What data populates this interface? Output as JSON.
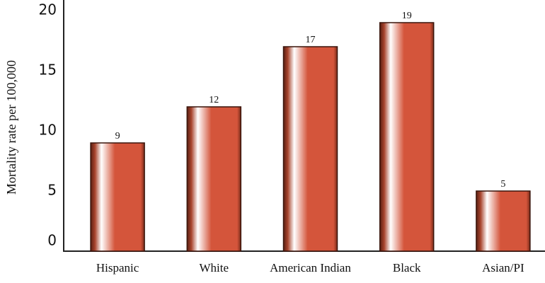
{
  "chart_data": {
    "type": "bar",
    "y_label": "Mortality rate per 100,000",
    "categories": [
      "Hispanic",
      "White",
      "American Indian",
      "Black",
      "Asian/PI"
    ],
    "values": [
      9,
      12,
      17,
      19,
      5
    ],
    "color": "#d4553b",
    "ylim": [
      0,
      20
    ],
    "yticks": [
      0,
      5,
      10,
      15,
      20
    ],
    "grid": false
  }
}
